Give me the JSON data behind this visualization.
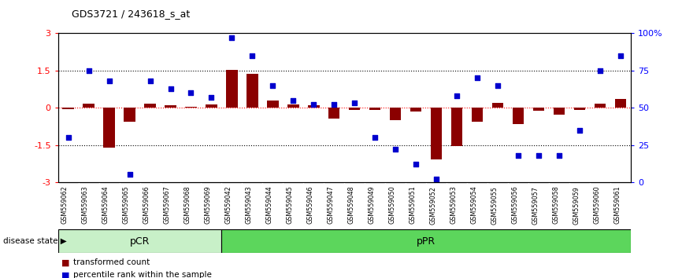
{
  "title": "GDS3721 / 243618_s_at",
  "samples": [
    "GSM559062",
    "GSM559063",
    "GSM559064",
    "GSM559065",
    "GSM559066",
    "GSM559067",
    "GSM559068",
    "GSM559069",
    "GSM559042",
    "GSM559043",
    "GSM559044",
    "GSM559045",
    "GSM559046",
    "GSM559047",
    "GSM559048",
    "GSM559049",
    "GSM559050",
    "GSM559051",
    "GSM559052",
    "GSM559053",
    "GSM559054",
    "GSM559055",
    "GSM559056",
    "GSM559057",
    "GSM559058",
    "GSM559059",
    "GSM559060",
    "GSM559061"
  ],
  "bar_values": [
    -0.05,
    0.15,
    -1.6,
    -0.55,
    0.15,
    0.1,
    0.05,
    0.12,
    1.52,
    1.38,
    0.28,
    0.12,
    0.1,
    -0.45,
    -0.08,
    -0.08,
    -0.5,
    -0.15,
    -2.1,
    -1.55,
    -0.55,
    0.18,
    -0.65,
    -0.12,
    -0.28,
    -0.1,
    0.15,
    0.35
  ],
  "dot_percentiles": [
    30,
    75,
    68,
    5,
    68,
    63,
    60,
    57,
    97,
    85,
    65,
    55,
    52,
    52,
    53,
    30,
    22,
    12,
    2,
    58,
    70,
    65,
    18,
    18,
    18,
    35,
    75,
    85
  ],
  "pCR_count": 8,
  "ylim": [
    -3,
    3
  ],
  "right_ylim": [
    0,
    100
  ],
  "bar_color": "#8B0000",
  "dot_color": "#0000CD",
  "disease_state_label": "disease state",
  "pCR_label": "pCR",
  "pPR_label": "pPR",
  "legend_bar": "transformed count",
  "legend_dot": "percentile rank within the sample",
  "pCR_color": "#c8f0c8",
  "pPR_color": "#5cd65c",
  "tick_label_bg": "#c8c8c8",
  "spine_color": "#000000"
}
